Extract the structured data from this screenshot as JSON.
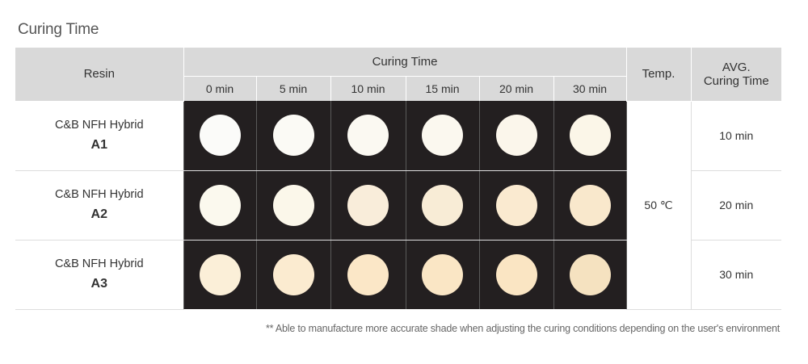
{
  "title": "Curing Time",
  "table": {
    "headers": {
      "resin": "Resin",
      "curing_time": "Curing Time",
      "temp": "Temp.",
      "avg_line1": "AVG.",
      "avg_line2": "Curing Time"
    },
    "time_columns": [
      "0 min",
      "5 min",
      "10 min",
      "15 min",
      "20 min",
      "30 min"
    ],
    "temperature": "50 ℃",
    "rows": [
      {
        "resin_name": "C&B NFH Hybrid",
        "grade": "A1",
        "avg_curing_time": "10 min",
        "swatch_colors": [
          "#fbfbf9",
          "#fbfaf5",
          "#fbf9f2",
          "#fbf8ef",
          "#fbf6eb",
          "#fbf6e8"
        ]
      },
      {
        "resin_name": "C&B NFH Hybrid",
        "grade": "A2",
        "avg_curing_time": "20 min",
        "swatch_colors": [
          "#fbf9ee",
          "#fbf7ea",
          "#f9edda",
          "#f8ecd6",
          "#faead0",
          "#f9e8cc"
        ]
      },
      {
        "resin_name": "C&B NFH Hybrid",
        "grade": "A3",
        "avg_curing_time": "30 min",
        "swatch_colors": [
          "#fbefd8",
          "#fbebd0",
          "#fbe7c7",
          "#fae6c5",
          "#fae5c3",
          "#f5e2c0"
        ]
      }
    ]
  },
  "footnote": "** Able to manufacture more accurate shade  when adjusting the curing conditions depending on the user's environment"
}
